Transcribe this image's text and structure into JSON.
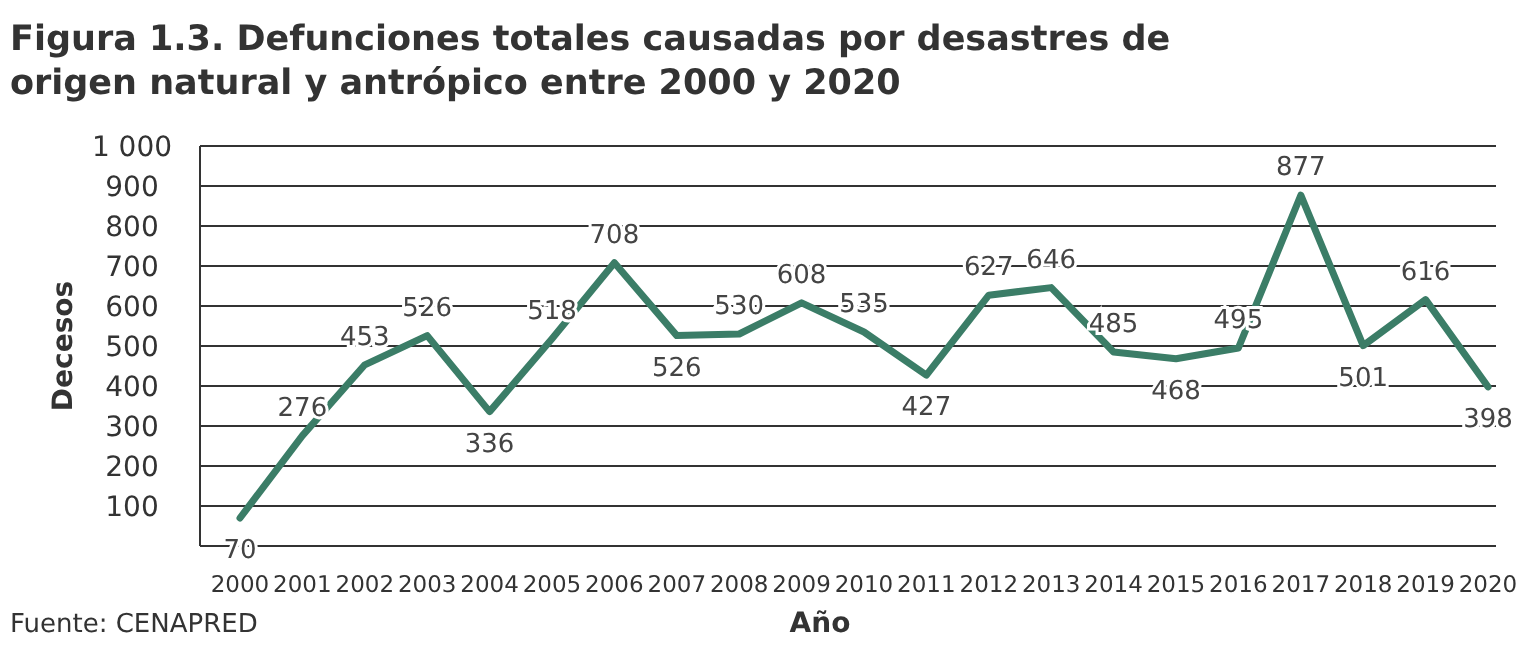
{
  "chart_data": {
    "type": "line",
    "title": "Figura 1.3. Defunciones totales causadas por desastres de origen natural y antrópico entre 2000 y 2020",
    "xlabel": "Año",
    "ylabel": "Decesos",
    "annotations": [
      "Fuente: CENAPRED"
    ],
    "categories": [
      "2000",
      "2001",
      "2002",
      "2003",
      "2004",
      "2005",
      "2006",
      "2007",
      "2008",
      "2009",
      "2010",
      "2011",
      "2012",
      "2013",
      "2014",
      "2015",
      "2016",
      "2017",
      "2018",
      "2019",
      "2020"
    ],
    "series": [
      {
        "color": "#3b7d67",
        "values": [
          70,
          276,
          453,
          526,
          336,
          518,
          708,
          526,
          530,
          608,
          535,
          427,
          627,
          646,
          485,
          468,
          495,
          877,
          501,
          616,
          398
        ]
      }
    ],
    "ylim": [
      0,
      1000
    ],
    "yticks": [
      {
        "value": 0,
        "label": null
      },
      100,
      200,
      300,
      400,
      500,
      600,
      700,
      800,
      900,
      {
        "value": 1000,
        "label": "1 000"
      }
    ],
    "grid": "y",
    "data_labels": true,
    "line_style": "solid",
    "marker": "none"
  }
}
